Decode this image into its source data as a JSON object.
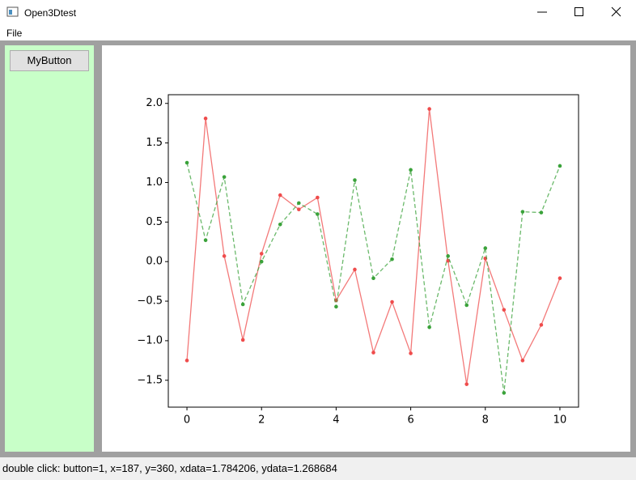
{
  "window": {
    "title": "Open3Dtest",
    "menu": [
      "File"
    ],
    "button": "MyButton",
    "status": "double click: button=1, x=187, y=360, xdata=1.784206, ydata=1.268684"
  },
  "chart_data": {
    "type": "line",
    "x": [
      0,
      0.5,
      1,
      1.5,
      2,
      2.5,
      3,
      3.5,
      4,
      4.5,
      5,
      5.5,
      6,
      6.5,
      7,
      7.5,
      8,
      8.5,
      9,
      9.5,
      10
    ],
    "series": [
      {
        "color": "#ef4c4c",
        "style": "solid",
        "values": [
          -1.25,
          1.81,
          0.07,
          -0.99,
          0.1,
          0.84,
          0.66,
          0.81,
          -0.49,
          -0.1,
          -1.15,
          -0.51,
          -1.16,
          1.93,
          0.01,
          -1.55,
          0.04,
          -0.61,
          -1.25,
          -0.8,
          -0.21
        ]
      },
      {
        "color": "#3aa23a",
        "style": "dashed",
        "values": [
          1.25,
          0.27,
          1.07,
          -0.54,
          0.0,
          0.47,
          0.74,
          0.6,
          -0.57,
          1.03,
          -0.21,
          0.03,
          1.16,
          -0.83,
          0.07,
          -0.55,
          0.17,
          -1.66,
          0.63,
          0.62,
          1.21
        ]
      }
    ],
    "xlim": [
      -0.5,
      10.5
    ],
    "ylim": [
      -1.84,
      2.11
    ],
    "xticks": [
      0,
      2,
      4,
      6,
      8,
      10
    ],
    "yticks": [
      {
        "value": -1.5,
        "label": "−1.5"
      },
      {
        "value": -1,
        "label": "−1.0"
      },
      {
        "value": -0.5,
        "label": "−0.5"
      },
      {
        "value": 0,
        "label": "0.0"
      },
      0.5,
      {
        "value": 1,
        "label": "1.0"
      },
      1.5,
      {
        "value": 2,
        "label": "2.0"
      }
    ],
    "grid": false
  }
}
